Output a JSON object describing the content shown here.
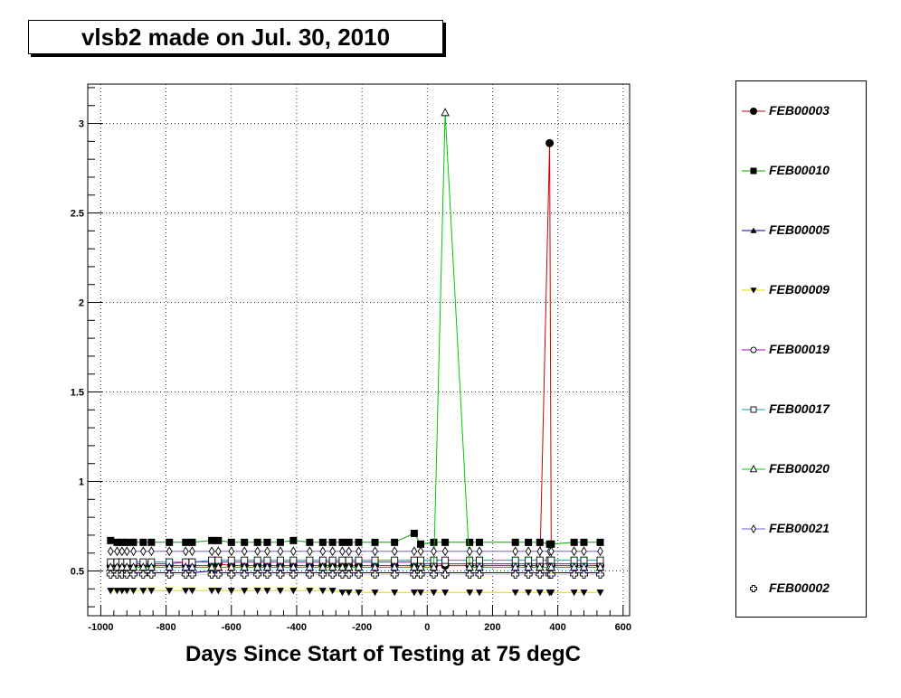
{
  "title": "vlsb2 made on Jul. 30, 2010",
  "chart_data": {
    "type": "line",
    "xlabel": "Days Since Start of Testing at 75 degC",
    "ylabel": "",
    "xlim": [
      -1040,
      620
    ],
    "ylim": [
      0.25,
      3.22
    ],
    "xticks": [
      -1000,
      -800,
      -600,
      -400,
      -200,
      0,
      200,
      400,
      600
    ],
    "yticks": [
      0.5,
      1,
      1.5,
      2,
      2.5,
      3
    ],
    "ytick_labels": [
      "0.5",
      "1",
      "1.5",
      "2",
      "2.5",
      "3"
    ],
    "grid": true,
    "legend_position": "right",
    "x": [
      -970,
      -950,
      -935,
      -920,
      -900,
      -870,
      -845,
      -790,
      -740,
      -720,
      -660,
      -640,
      -600,
      -560,
      -520,
      -490,
      -450,
      -410,
      -360,
      -320,
      -290,
      -260,
      -240,
      -210,
      -160,
      -100,
      -40,
      -20,
      20,
      55,
      130,
      160,
      270,
      310,
      345,
      375,
      380,
      450,
      480,
      530
    ],
    "series": [
      {
        "name": "FEB00003",
        "color": "#cc0000",
        "marker": "circle-filled",
        "values": [
          0.53,
          0.53,
          0.53,
          0.53,
          0.53,
          0.53,
          0.53,
          0.53,
          0.53,
          0.53,
          0.53,
          0.54,
          0.53,
          0.53,
          0.53,
          0.53,
          0.53,
          0.53,
          0.53,
          0.53,
          0.53,
          0.53,
          0.53,
          0.53,
          0.53,
          0.53,
          0.53,
          0.53,
          0.53,
          0.53,
          0.53,
          0.53,
          0.53,
          0.53,
          0.53,
          2.89,
          0.53,
          0.53,
          0.53,
          0.53
        ]
      },
      {
        "name": "FEB00010",
        "color": "#00aa00",
        "marker": "square-filled",
        "values": [
          0.67,
          0.66,
          0.66,
          0.66,
          0.66,
          0.66,
          0.66,
          0.66,
          0.66,
          0.66,
          0.67,
          0.67,
          0.66,
          0.66,
          0.66,
          0.66,
          0.66,
          0.67,
          0.66,
          0.66,
          0.66,
          0.66,
          0.66,
          0.66,
          0.66,
          0.66,
          0.71,
          0.65,
          0.66,
          0.66,
          0.66,
          0.66,
          0.66,
          0.66,
          0.66,
          0.65,
          0.65,
          0.66,
          0.66,
          0.66
        ]
      },
      {
        "name": "FEB00005",
        "color": "#000088",
        "marker": "triangle-up-filled",
        "values": [
          0.49,
          0.49,
          0.49,
          0.49,
          0.49,
          0.49,
          0.49,
          0.49,
          0.49,
          0.49,
          0.5,
          0.49,
          0.49,
          0.49,
          0.49,
          0.49,
          0.49,
          0.49,
          0.49,
          0.49,
          0.49,
          0.49,
          0.49,
          0.49,
          0.49,
          0.49,
          0.49,
          0.49,
          0.49,
          0.49,
          0.49,
          0.49,
          0.49,
          0.49,
          0.49,
          0.49,
          0.49,
          0.49,
          0.49,
          0.49
        ]
      },
      {
        "name": "FEB00009",
        "color": "#dddd00",
        "marker": "triangle-down-filled",
        "values": [
          0.39,
          0.39,
          0.39,
          0.39,
          0.39,
          0.39,
          0.39,
          0.39,
          0.39,
          0.39,
          0.39,
          0.39,
          0.39,
          0.39,
          0.39,
          0.39,
          0.39,
          0.39,
          0.39,
          0.39,
          0.39,
          0.38,
          0.38,
          0.38,
          0.38,
          0.38,
          0.38,
          0.38,
          0.38,
          0.38,
          0.38,
          0.38,
          0.38,
          0.38,
          0.38,
          0.38,
          0.38,
          0.38,
          0.38,
          0.38
        ]
      },
      {
        "name": "FEB00019",
        "color": "#aa00aa",
        "marker": "circle-open",
        "values": [
          0.54,
          0.54,
          0.54,
          0.54,
          0.54,
          0.54,
          0.54,
          0.54,
          0.55,
          0.55,
          0.55,
          0.55,
          0.55,
          0.55,
          0.55,
          0.55,
          0.55,
          0.55,
          0.55,
          0.55,
          0.55,
          0.55,
          0.55,
          0.55,
          0.55,
          0.55,
          0.55,
          0.54,
          0.54,
          0.54,
          0.54,
          0.54,
          0.54,
          0.54,
          0.54,
          0.54,
          0.54,
          0.54,
          0.54,
          0.54
        ]
      },
      {
        "name": "FEB00017",
        "color": "#00aaaa",
        "marker": "square-open",
        "values": [
          0.55,
          0.55,
          0.55,
          0.55,
          0.55,
          0.55,
          0.55,
          0.55,
          0.55,
          0.55,
          0.56,
          0.56,
          0.56,
          0.56,
          0.56,
          0.56,
          0.56,
          0.56,
          0.56,
          0.56,
          0.56,
          0.56,
          0.56,
          0.56,
          0.56,
          0.56,
          0.56,
          0.56,
          0.56,
          0.56,
          0.56,
          0.56,
          0.56,
          0.56,
          0.56,
          0.56,
          0.56,
          0.56,
          0.56,
          0.56
        ]
      },
      {
        "name": "FEB00020",
        "color": "#00cc00",
        "marker": "triangle-up-open",
        "values": [
          0.52,
          0.52,
          0.52,
          0.52,
          0.52,
          0.52,
          0.52,
          0.52,
          0.52,
          0.52,
          0.52,
          0.52,
          0.52,
          0.52,
          0.52,
          0.52,
          0.52,
          0.52,
          0.52,
          0.52,
          0.52,
          0.52,
          0.52,
          0.52,
          0.52,
          0.52,
          0.52,
          0.52,
          0.52,
          3.06,
          0.52,
          0.52,
          0.52,
          0.52,
          0.52,
          0.52,
          0.52,
          0.52,
          0.52,
          0.52
        ]
      },
      {
        "name": "FEB00021",
        "color": "#6666cc",
        "marker": "diamond-open",
        "values": [
          0.61,
          0.61,
          0.61,
          0.61,
          0.61,
          0.61,
          0.61,
          0.61,
          0.61,
          0.61,
          0.61,
          0.61,
          0.61,
          0.61,
          0.61,
          0.61,
          0.61,
          0.61,
          0.61,
          0.61,
          0.61,
          0.61,
          0.61,
          0.61,
          0.61,
          0.61,
          0.61,
          0.61,
          0.61,
          0.61,
          0.61,
          0.61,
          0.61,
          0.61,
          0.61,
          0.61,
          0.61,
          0.61,
          0.61,
          0.61
        ]
      },
      {
        "name": "FEB00002",
        "color": "#ffffff",
        "marker": "plus-open",
        "values": [
          0.48,
          0.48,
          0.48,
          0.48,
          0.48,
          0.48,
          0.48,
          0.48,
          0.48,
          0.48,
          0.48,
          0.48,
          0.48,
          0.48,
          0.48,
          0.48,
          0.48,
          0.48,
          0.48,
          0.48,
          0.48,
          0.48,
          0.48,
          0.48,
          0.48,
          0.48,
          0.48,
          0.48,
          0.48,
          0.48,
          0.48,
          0.48,
          0.48,
          0.48,
          0.48,
          0.48,
          0.48,
          0.48,
          0.48,
          0.48
        ]
      }
    ]
  }
}
